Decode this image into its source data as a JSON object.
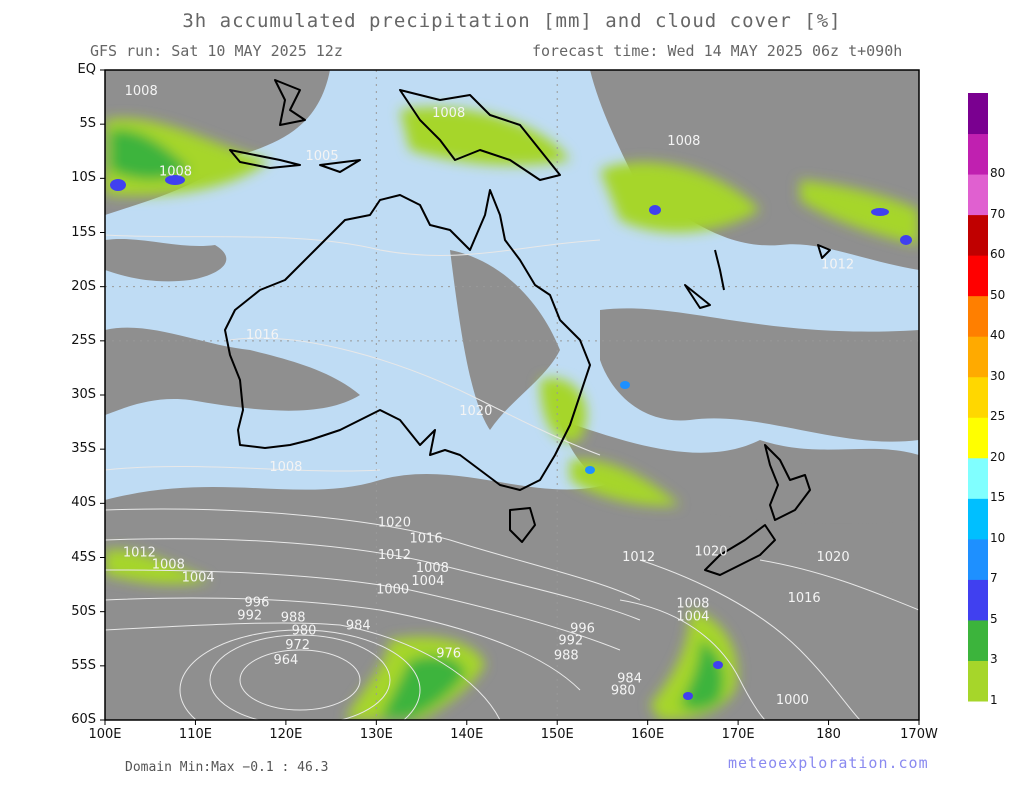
{
  "header": {
    "title": "3h accumulated precipitation [mm] and cloud cover [%]",
    "run": "GFS run: Sat 10 MAY 2025 12z",
    "forecast_time": "forecast time: Wed 14 MAY 2025 06z  t+090h"
  },
  "footer": {
    "domain_minmax": "Domain Min:Max −0.1 : 46.3",
    "credit": "meteoexploration.com"
  },
  "axes": {
    "lat_labels": [
      "EQ",
      "5S",
      "10S",
      "15S",
      "20S",
      "25S",
      "30S",
      "35S",
      "40S",
      "45S",
      "50S",
      "55S",
      "60S"
    ],
    "lon_labels": [
      "100E",
      "110E",
      "120E",
      "130E",
      "140E",
      "150E",
      "160E",
      "170E",
      "180",
      "170W"
    ]
  },
  "colorbar": {
    "levels": [
      "1",
      "3",
      "5",
      "7",
      "10",
      "15",
      "20",
      "25",
      "30",
      "40",
      "50",
      "60",
      "70",
      "80"
    ],
    "colors": [
      "#a6d62a",
      "#3cb43c",
      "#4040f0",
      "#1e90ff",
      "#00bfff",
      "#80ffff",
      "#ffff00",
      "#ffd700",
      "#ffaa00",
      "#ff7f00",
      "#ff0000",
      "#c00000",
      "#e060d0",
      "#c020b0",
      "#7a0090"
    ]
  },
  "isobars": {
    "labels": [
      {
        "text": "1008",
        "lon": 104,
        "lat": -2
      },
      {
        "text": "1008",
        "lon": 138,
        "lat": -4
      },
      {
        "text": "1008",
        "lon": 107.8,
        "lat": -9.4
      },
      {
        "text": "1005",
        "lon": 124,
        "lat": -8
      },
      {
        "text": "1008",
        "lon": 164,
        "lat": -6.6
      },
      {
        "text": "1016",
        "lon": 117.4,
        "lat": -24.5
      },
      {
        "text": "1020",
        "lon": 141,
        "lat": -31.5
      },
      {
        "text": "1008",
        "lon": 120,
        "lat": -36.7
      },
      {
        "text": "1020",
        "lon": 132,
        "lat": -41.8
      },
      {
        "text": "1016",
        "lon": 135.5,
        "lat": -43.3
      },
      {
        "text": "1012",
        "lon": 103.8,
        "lat": -44.6
      },
      {
        "text": "1008",
        "lon": 107,
        "lat": -45.7
      },
      {
        "text": "1004",
        "lon": 110.3,
        "lat": -46.9
      },
      {
        "text": "1012",
        "lon": 132,
        "lat": -44.8
      },
      {
        "text": "1008",
        "lon": 136.2,
        "lat": -46
      },
      {
        "text": "1004",
        "lon": 135.7,
        "lat": -47.2
      },
      {
        "text": "1000",
        "lon": 131.8,
        "lat": -48
      },
      {
        "text": "996",
        "lon": 116.8,
        "lat": -49.2
      },
      {
        "text": "992",
        "lon": 116,
        "lat": -50.4
      },
      {
        "text": "988",
        "lon": 120.8,
        "lat": -50.6
      },
      {
        "text": "984",
        "lon": 128,
        "lat": -51.3
      },
      {
        "text": "980",
        "lon": 122,
        "lat": -51.8
      },
      {
        "text": "972",
        "lon": 121.3,
        "lat": -53.1
      },
      {
        "text": "964",
        "lon": 120,
        "lat": -54.5
      },
      {
        "text": "976",
        "lon": 138,
        "lat": -53.9
      },
      {
        "text": "996",
        "lon": 152.8,
        "lat": -51.6
      },
      {
        "text": "992",
        "lon": 151.5,
        "lat": -52.7
      },
      {
        "text": "988",
        "lon": 151,
        "lat": -54.1
      },
      {
        "text": "984",
        "lon": 158,
        "lat": -56.2
      },
      {
        "text": "980",
        "lon": 157.3,
        "lat": -57.3
      },
      {
        "text": "1008",
        "lon": 165,
        "lat": -49.3
      },
      {
        "text": "1004",
        "lon": 165,
        "lat": -50.5
      },
      {
        "text": "1000",
        "lon": 176,
        "lat": -58.2
      },
      {
        "text": "1020",
        "lon": 167,
        "lat": -44.5
      },
      {
        "text": "1012",
        "lon": 159,
        "lat": -45
      },
      {
        "text": "1016",
        "lon": 177.3,
        "lat": -48.8
      },
      {
        "text": "1020",
        "lon": 180.5,
        "lat": -45
      },
      {
        "text": "1012",
        "lon": 181,
        "lat": -18
      }
    ]
  }
}
